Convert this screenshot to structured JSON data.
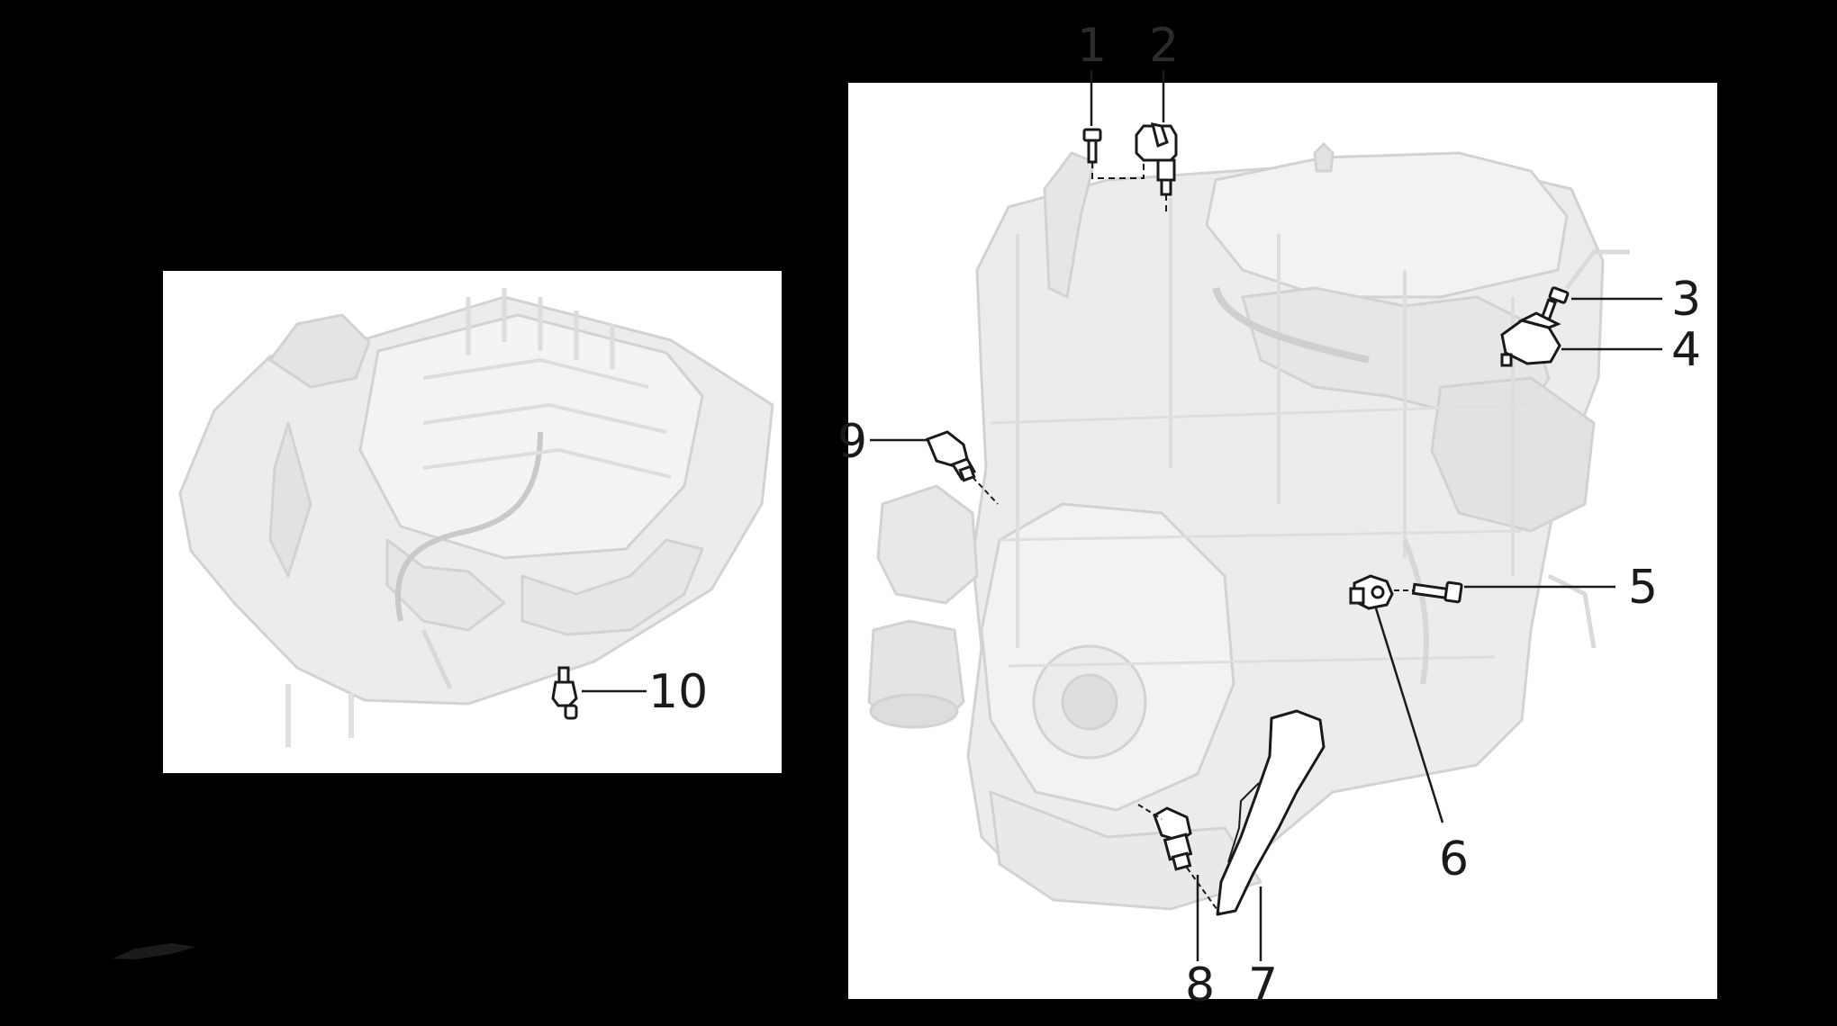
{
  "diagram": {
    "background": "#000000",
    "panel_fill": "#ffffff",
    "engine_fill": "#ececec",
    "engine_line": "#d2d2d2",
    "part_line": "#1a1a1a",
    "callout_color": "#1a1a1a",
    "callout_color_outside": "#2b2b2b"
  },
  "callouts": {
    "c1": "1",
    "c2": "2",
    "c3": "3",
    "c4": "4",
    "c5": "5",
    "c6": "6",
    "c7": "7",
    "c8": "8",
    "c9": "9",
    "c10": "10"
  },
  "parts": {
    "p1": "bolt-icon",
    "p2": "camshaft-position-sensor-icon",
    "p3": "bolt-icon",
    "p4": "manifold-pressure-sensor-icon",
    "p5": "bolt-icon",
    "p6": "knock-sensor-icon",
    "p7": "sensor-shield-icon",
    "p8": "crankshaft-position-sensor-icon",
    "p9": "oil-pressure-sensor-icon",
    "p10": "oil-pressure-switch-icon"
  }
}
